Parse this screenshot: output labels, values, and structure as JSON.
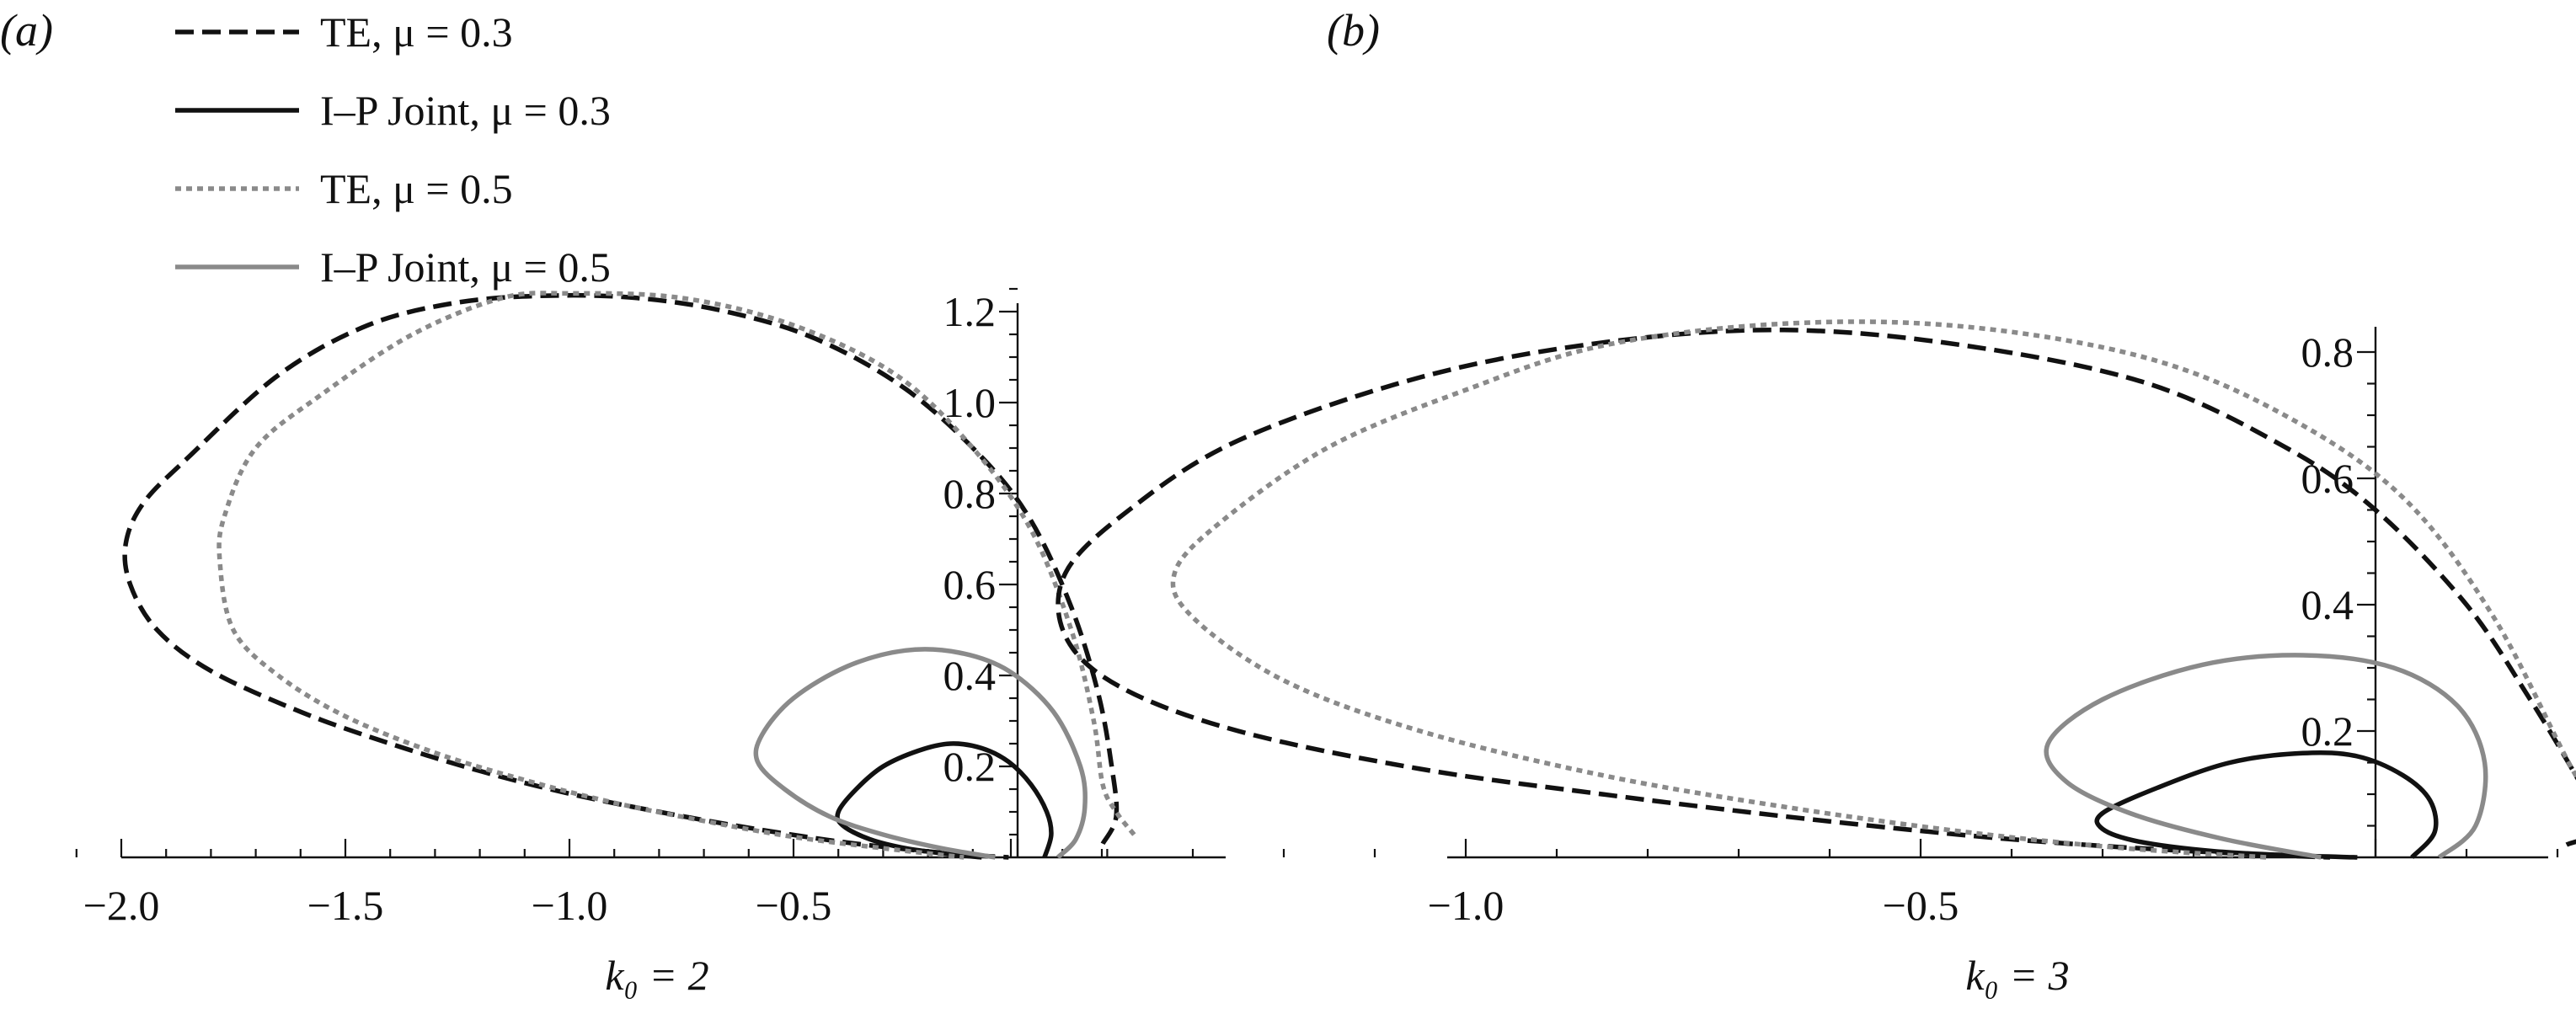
{
  "legend": [
    {
      "label": "TE, μ = 0.3",
      "style": "dashed",
      "color": "#111111"
    },
    {
      "label": "I–P  Joint, μ = 0.3",
      "style": "solid",
      "color": "#111111"
    },
    {
      "label": "TE, μ = 0.5",
      "style": "dotted",
      "color": "#8a8a8a"
    },
    {
      "label": "I–P  Joint, μ = 0.5",
      "style": "solid",
      "color": "#8a8a8a"
    }
  ],
  "chart_data": [
    {
      "type": "line",
      "panel_label": "(a)",
      "xlabel": "k₀ = 2",
      "xlim": [
        -2.1,
        0.23
      ],
      "ylim": [
        0,
        1.26
      ],
      "x_ticks": [
        -2.0,
        -1.5,
        -1.0,
        -0.5
      ],
      "x_tick_labels": [
        "−2.0",
        "−1.5",
        "−1.0",
        "−0.5"
      ],
      "y_ticks": [
        0.2,
        0.4,
        0.6,
        0.8,
        1.0,
        1.2
      ],
      "y_tick_labels": [
        "0.2",
        "0.4",
        "0.6",
        "0.8",
        "1.0",
        "1.2"
      ],
      "series": [
        {
          "name": "TE, μ = 0.3",
          "style": "dashed",
          "color": "#111111",
          "x": [
            0.19,
            0.22,
            0.21,
            0.18,
            0.12,
            0.03,
            -0.08,
            -0.25,
            -0.45,
            -0.65,
            -0.85,
            -1.05,
            -1.25,
            -1.45,
            -1.65,
            -1.85,
            -1.95,
            -1.99,
            -1.98,
            -1.92,
            -1.8,
            -1.6,
            -1.4,
            -1.2,
            -1.0,
            -0.8,
            -0.6,
            -0.4,
            -0.25,
            -0.12,
            -0.02
          ],
          "y": [
            0.03,
            0.09,
            0.2,
            0.36,
            0.55,
            0.74,
            0.88,
            1.03,
            1.14,
            1.2,
            1.23,
            1.235,
            1.22,
            1.17,
            1.06,
            0.88,
            0.78,
            0.69,
            0.6,
            0.5,
            0.41,
            0.32,
            0.25,
            0.19,
            0.14,
            0.1,
            0.065,
            0.035,
            0.018,
            0.006,
            0.0
          ]
        },
        {
          "name": "I–P  Joint, μ = 0.3",
          "style": "solid",
          "color": "#111111",
          "x": [
            0.06,
            0.075,
            0.065,
            0.03,
            -0.02,
            -0.08,
            -0.15,
            -0.22,
            -0.3,
            -0.36,
            -0.4,
            -0.39,
            -0.33,
            -0.25,
            -0.16,
            -0.08
          ],
          "y": [
            0.0,
            0.05,
            0.1,
            0.16,
            0.21,
            0.24,
            0.25,
            0.235,
            0.2,
            0.15,
            0.1,
            0.07,
            0.04,
            0.02,
            0.008,
            0.0
          ]
        },
        {
          "name": "TE, μ = 0.5",
          "style": "dotted",
          "color": "#8a8a8a",
          "x": [
            0.26,
            0.22,
            0.19,
            0.17,
            0.12,
            0.03,
            -0.1,
            -0.27,
            -0.5,
            -0.75,
            -1.0,
            -1.15,
            -1.35,
            -1.55,
            -1.7,
            -1.77,
            -1.78,
            -1.75,
            -1.65,
            -1.5,
            -1.3,
            -1.1,
            -0.9,
            -0.7,
            -0.5,
            -0.3,
            -0.12
          ],
          "y": [
            0.05,
            0.1,
            0.16,
            0.3,
            0.5,
            0.72,
            0.9,
            1.06,
            1.17,
            1.23,
            1.24,
            1.23,
            1.15,
            1.02,
            0.9,
            0.75,
            0.65,
            0.5,
            0.4,
            0.31,
            0.23,
            0.17,
            0.12,
            0.08,
            0.045,
            0.02,
            0.0
          ]
        },
        {
          "name": "I–P  Joint, μ = 0.5",
          "style": "solid",
          "color": "#8a8a8a",
          "x": [
            0.09,
            0.13,
            0.15,
            0.14,
            0.08,
            -0.02,
            -0.13,
            -0.25,
            -0.38,
            -0.5,
            -0.57,
            -0.58,
            -0.52,
            -0.42,
            -0.3,
            -0.17,
            -0.05
          ],
          "y": [
            0.0,
            0.04,
            0.11,
            0.2,
            0.32,
            0.41,
            0.45,
            0.455,
            0.42,
            0.35,
            0.27,
            0.21,
            0.15,
            0.09,
            0.05,
            0.02,
            0.0
          ]
        }
      ]
    },
    {
      "type": "line",
      "panel_label": "(b)",
      "xlabel": "k₀ = 3",
      "xlim": [
        -1.53,
        0.28
      ],
      "ylim": [
        0,
        0.84
      ],
      "x_ticks": [
        -1.0,
        -0.5
      ],
      "x_tick_labels": [
        "−1.0",
        "−0.5"
      ],
      "y_ticks": [
        0.2,
        0.4,
        0.6,
        0.8
      ],
      "y_tick_labels": [
        "0.2",
        "0.4",
        "0.6",
        "0.8"
      ],
      "series": [
        {
          "name": "TE, μ = 0.3",
          "style": "dashed",
          "color": "#111111",
          "x": [
            0.21,
            0.25,
            0.22,
            0.17,
            0.1,
            0.0,
            -0.1,
            -0.25,
            -0.45,
            -0.65,
            -0.85,
            -1.05,
            -1.25,
            -1.37,
            -1.44,
            -1.44,
            -1.38,
            -1.25,
            -1.05,
            -0.85,
            -0.65,
            -0.45,
            -0.3,
            -0.15,
            -0.05
          ],
          "y": [
            0.02,
            0.05,
            0.13,
            0.25,
            0.4,
            0.55,
            0.65,
            0.75,
            0.81,
            0.835,
            0.815,
            0.76,
            0.66,
            0.55,
            0.45,
            0.35,
            0.27,
            0.2,
            0.14,
            0.1,
            0.065,
            0.035,
            0.018,
            0.006,
            0.0
          ]
        },
        {
          "name": "I–P  Joint, μ = 0.3",
          "style": "solid",
          "color": "#111111",
          "x": [
            0.04,
            0.065,
            0.06,
            0.03,
            -0.02,
            -0.08,
            -0.16,
            -0.24,
            -0.3,
            -0.3,
            -0.26,
            -0.18,
            -0.09,
            -0.02
          ],
          "y": [
            0.0,
            0.04,
            0.09,
            0.13,
            0.16,
            0.165,
            0.15,
            0.11,
            0.07,
            0.045,
            0.025,
            0.01,
            0.003,
            0.0
          ]
        },
        {
          "name": "TE, μ = 0.5",
          "style": "dotted",
          "color": "#8a8a8a",
          "x": [
            0.28,
            0.26,
            0.22,
            0.13,
            0.03,
            -0.1,
            -0.25,
            -0.45,
            -0.65,
            -0.85,
            -1.0,
            -1.15,
            -1.27,
            -1.32,
            -1.3,
            -1.2,
            -1.05,
            -0.85,
            -0.65,
            -0.45,
            -0.28,
            -0.12
          ],
          "y": [
            0.02,
            0.06,
            0.13,
            0.38,
            0.57,
            0.7,
            0.79,
            0.84,
            0.845,
            0.81,
            0.74,
            0.65,
            0.53,
            0.45,
            0.38,
            0.28,
            0.2,
            0.13,
            0.08,
            0.04,
            0.015,
            0.0
          ]
        },
        {
          "name": "I–P  Joint, μ = 0.5",
          "style": "solid",
          "color": "#8a8a8a",
          "x": [
            0.07,
            0.11,
            0.12,
            0.09,
            0.02,
            -0.08,
            -0.19,
            -0.3,
            -0.36,
            -0.34,
            -0.27,
            -0.17,
            -0.06
          ],
          "y": [
            0.0,
            0.05,
            0.15,
            0.24,
            0.3,
            0.32,
            0.305,
            0.25,
            0.18,
            0.12,
            0.07,
            0.03,
            0.0
          ]
        }
      ]
    }
  ]
}
